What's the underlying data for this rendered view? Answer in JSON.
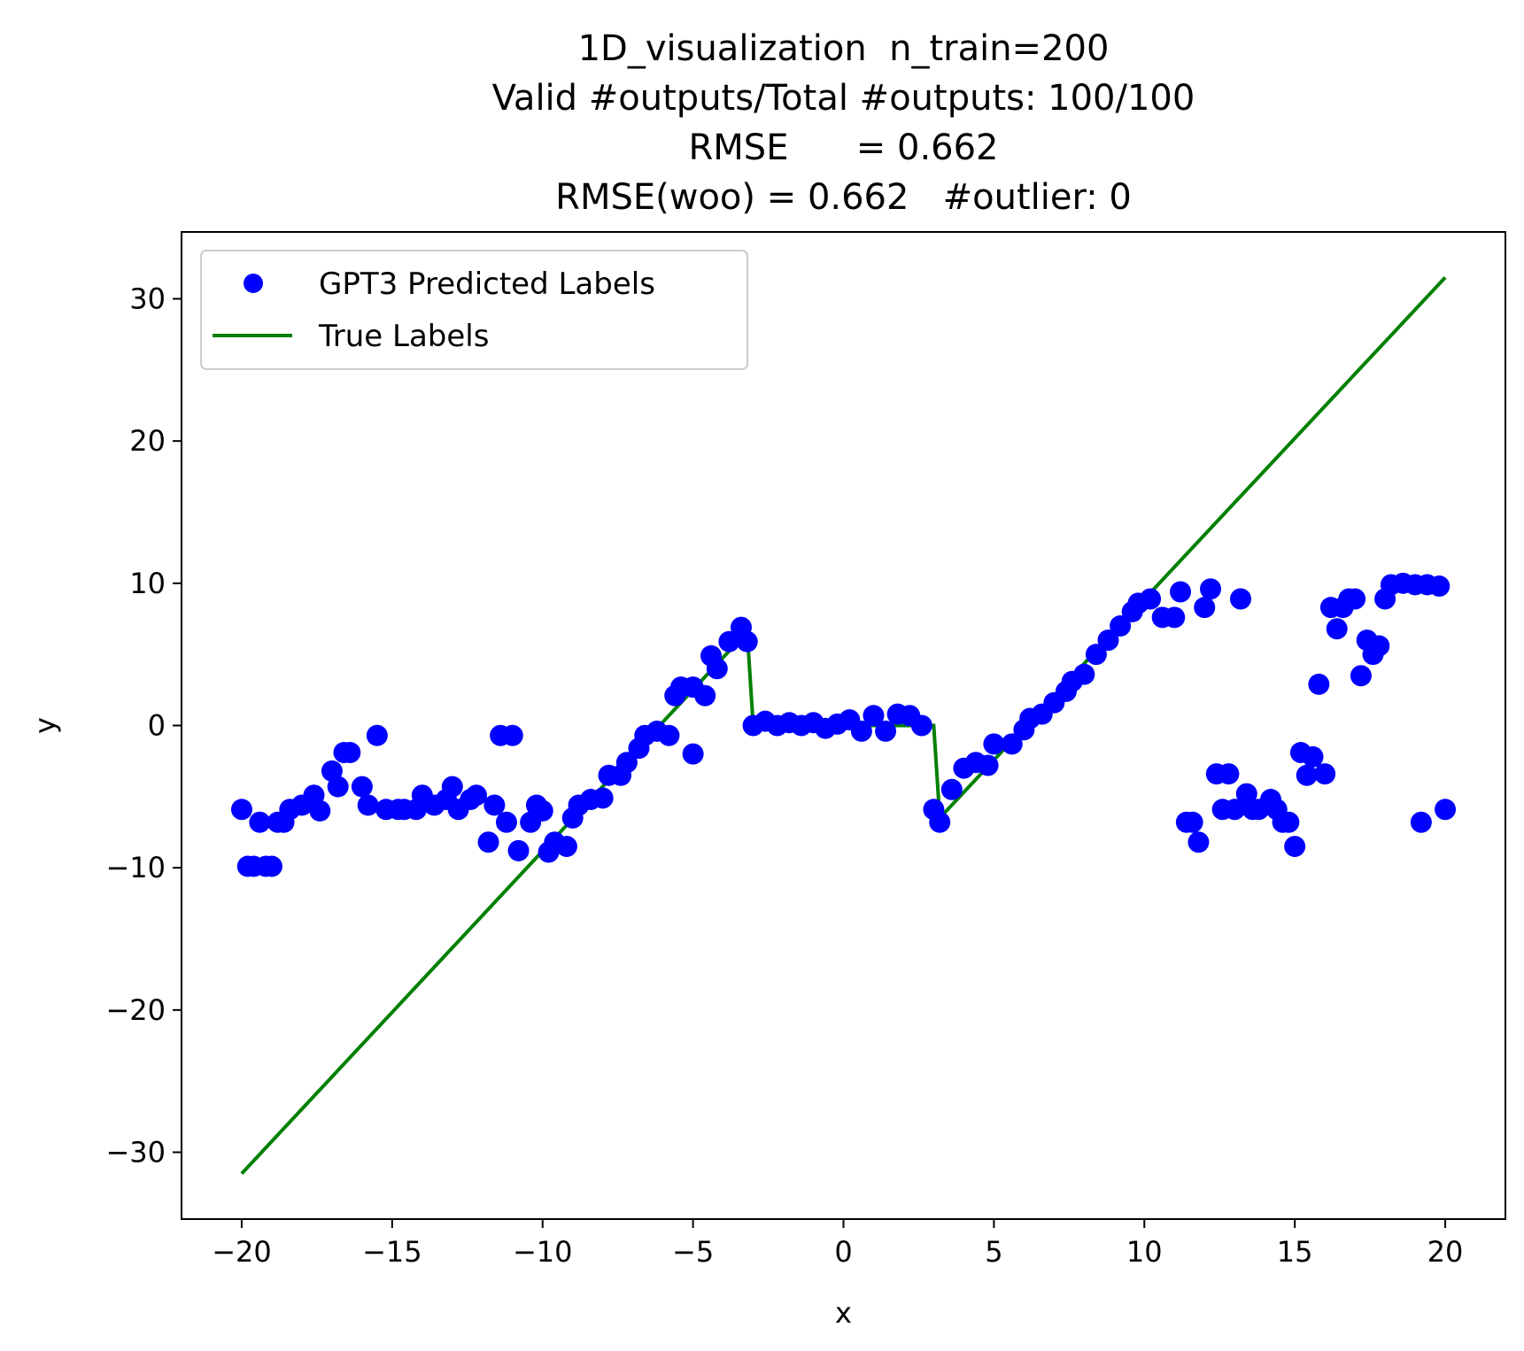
{
  "chart_data": {
    "type": "scatter",
    "title_lines": [
      "1D_visualization  n_train=200",
      "Valid #outputs/Total #outputs: 100/100",
      "RMSE      = 0.662",
      "RMSE(woo) = 0.662   #outlier: 0"
    ],
    "xlabel": "x",
    "ylabel": "y",
    "xlim": [
      -22,
      22
    ],
    "ylim": [
      -34.7,
      34.7
    ],
    "xticks": [
      -20,
      -15,
      -10,
      -5,
      0,
      5,
      10,
      15,
      20
    ],
    "xtick_labels": [
      "−20",
      "−15",
      "−10",
      "−5",
      "0",
      "5",
      "10",
      "15",
      "20"
    ],
    "yticks": [
      -30,
      -20,
      -10,
      0,
      10,
      20,
      30
    ],
    "ytick_labels": [
      "−30",
      "−20",
      "−10",
      "0",
      "10",
      "20",
      "30"
    ],
    "grid": false,
    "legend_position": "upper-left",
    "series": [
      {
        "name": "GPT3 Predicted Labels",
        "kind": "scatter",
        "color": "#0000ff",
        "points": [
          [
            -20.0,
            -5.9
          ],
          [
            -19.8,
            -9.9
          ],
          [
            -19.6,
            -9.9
          ],
          [
            -19.4,
            -6.8
          ],
          [
            -19.2,
            -9.9
          ],
          [
            -19.0,
            -9.9
          ],
          [
            -18.8,
            -6.8
          ],
          [
            -18.6,
            -6.8
          ],
          [
            -18.4,
            -5.9
          ],
          [
            -18.0,
            -5.6
          ],
          [
            -17.6,
            -4.9
          ],
          [
            -17.4,
            -6.0
          ],
          [
            -17.0,
            -3.2
          ],
          [
            -16.8,
            -4.3
          ],
          [
            -16.6,
            -1.9
          ],
          [
            -16.4,
            -1.9
          ],
          [
            -16.0,
            -4.3
          ],
          [
            -15.8,
            -5.6
          ],
          [
            -15.5,
            -0.7
          ],
          [
            -15.2,
            -5.9
          ],
          [
            -14.8,
            -5.9
          ],
          [
            -14.6,
            -5.9
          ],
          [
            -14.2,
            -5.9
          ],
          [
            -14.0,
            -4.9
          ],
          [
            -13.6,
            -5.6
          ],
          [
            -13.2,
            -5.2
          ],
          [
            -13.0,
            -4.3
          ],
          [
            -12.8,
            -5.9
          ],
          [
            -12.4,
            -5.2
          ],
          [
            -12.2,
            -4.9
          ],
          [
            -11.8,
            -8.2
          ],
          [
            -11.6,
            -5.6
          ],
          [
            -11.4,
            -0.7
          ],
          [
            -11.2,
            -6.8
          ],
          [
            -11.0,
            -0.7
          ],
          [
            -10.8,
            -8.8
          ],
          [
            -10.4,
            -6.8
          ],
          [
            -10.2,
            -5.6
          ],
          [
            -10.0,
            -6.0
          ],
          [
            -9.8,
            -8.9
          ],
          [
            -9.6,
            -8.2
          ],
          [
            -9.2,
            -8.5
          ],
          [
            -9.0,
            -6.5
          ],
          [
            -8.8,
            -5.6
          ],
          [
            -8.4,
            -5.2
          ],
          [
            -8.0,
            -5.1
          ],
          [
            -7.8,
            -3.5
          ],
          [
            -7.4,
            -3.5
          ],
          [
            -7.2,
            -2.6
          ],
          [
            -6.8,
            -1.6
          ],
          [
            -6.6,
            -0.7
          ],
          [
            -6.2,
            -0.4
          ],
          [
            -5.8,
            -0.7
          ],
          [
            -5.6,
            2.1
          ],
          [
            -5.4,
            2.7
          ],
          [
            -5.0,
            2.7
          ],
          [
            -5.0,
            -2.0
          ],
          [
            -4.6,
            2.1
          ],
          [
            -4.4,
            4.9
          ],
          [
            -4.2,
            4.0
          ],
          [
            -3.8,
            5.9
          ],
          [
            -3.4,
            6.9
          ],
          [
            -3.2,
            5.9
          ],
          [
            -3.0,
            0.0
          ],
          [
            -2.6,
            0.3
          ],
          [
            -2.2,
            0.0
          ],
          [
            -1.8,
            0.2
          ],
          [
            -1.4,
            0.0
          ],
          [
            -1.0,
            0.2
          ],
          [
            -0.6,
            -0.2
          ],
          [
            -0.2,
            0.1
          ],
          [
            0.2,
            0.4
          ],
          [
            0.6,
            -0.4
          ],
          [
            1.0,
            0.7
          ],
          [
            1.4,
            -0.4
          ],
          [
            1.8,
            0.8
          ],
          [
            2.2,
            0.7
          ],
          [
            2.6,
            0.0
          ],
          [
            3.0,
            -5.9
          ],
          [
            3.2,
            -6.8
          ],
          [
            3.6,
            -4.5
          ],
          [
            4.0,
            -3.0
          ],
          [
            4.4,
            -2.6
          ],
          [
            4.8,
            -2.8
          ],
          [
            5.0,
            -1.3
          ],
          [
            5.6,
            -1.3
          ],
          [
            6.0,
            -0.3
          ],
          [
            6.2,
            0.5
          ],
          [
            6.6,
            0.8
          ],
          [
            7.0,
            1.6
          ],
          [
            7.4,
            2.4
          ],
          [
            7.6,
            3.1
          ],
          [
            8.0,
            3.6
          ],
          [
            8.4,
            5.0
          ],
          [
            8.8,
            6.0
          ],
          [
            9.2,
            7.0
          ],
          [
            9.6,
            8.0
          ],
          [
            9.8,
            8.6
          ],
          [
            10.2,
            8.9
          ],
          [
            10.6,
            7.6
          ],
          [
            11.0,
            7.6
          ],
          [
            11.2,
            9.4
          ],
          [
            11.4,
            -6.8
          ],
          [
            11.6,
            -6.8
          ],
          [
            11.8,
            -8.2
          ],
          [
            12.0,
            8.3
          ],
          [
            12.2,
            9.6
          ],
          [
            12.4,
            -3.4
          ],
          [
            12.6,
            -5.9
          ],
          [
            12.8,
            -3.4
          ],
          [
            13.0,
            -5.9
          ],
          [
            13.2,
            8.9
          ],
          [
            13.4,
            -4.8
          ],
          [
            13.6,
            -5.9
          ],
          [
            13.8,
            -5.9
          ],
          [
            14.2,
            -5.2
          ],
          [
            14.4,
            -5.9
          ],
          [
            14.6,
            -6.8
          ],
          [
            14.8,
            -6.8
          ],
          [
            15.0,
            -8.5
          ],
          [
            15.2,
            -1.9
          ],
          [
            15.4,
            -3.5
          ],
          [
            15.6,
            -2.2
          ],
          [
            15.8,
            2.9
          ],
          [
            16.0,
            -3.4
          ],
          [
            16.2,
            8.3
          ],
          [
            16.4,
            6.8
          ],
          [
            16.6,
            8.3
          ],
          [
            16.8,
            8.9
          ],
          [
            17.0,
            8.9
          ],
          [
            17.2,
            3.5
          ],
          [
            17.4,
            6.0
          ],
          [
            17.6,
            5.0
          ],
          [
            17.8,
            5.6
          ],
          [
            18.0,
            8.9
          ],
          [
            18.2,
            9.9
          ],
          [
            18.6,
            10.0
          ],
          [
            19.0,
            9.9
          ],
          [
            19.2,
            -6.8
          ],
          [
            19.4,
            9.9
          ],
          [
            19.8,
            9.8
          ],
          [
            20.0,
            -5.9
          ]
        ]
      },
      {
        "name": "True Labels",
        "kind": "line",
        "color": "#008000",
        "points": [
          [
            -20.0,
            -31.5
          ],
          [
            -3.2,
            6.6
          ],
          [
            -3.0,
            0.0
          ],
          [
            3.0,
            0.0
          ],
          [
            3.2,
            -6.5
          ],
          [
            20.0,
            31.5
          ]
        ]
      }
    ]
  }
}
